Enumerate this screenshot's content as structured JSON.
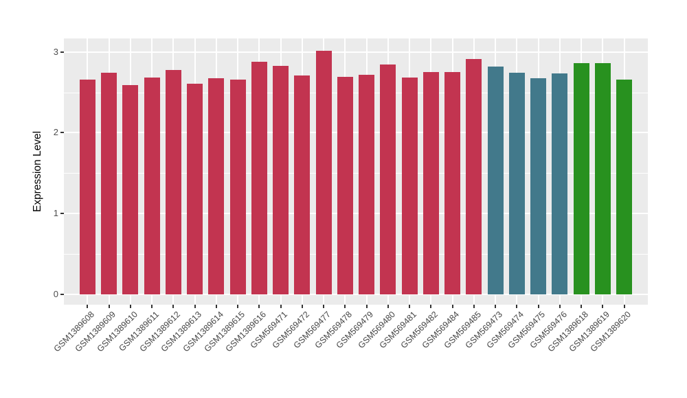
{
  "chart_data": {
    "type": "bar",
    "title": "",
    "xlabel": "",
    "ylabel": "Expression Level",
    "ylim": [
      0,
      3.17
    ],
    "yticks": [
      0,
      1,
      2,
      3
    ],
    "ytick_labels": [
      "0",
      "1",
      "2",
      "3"
    ],
    "minor_gridlines": [
      0.5,
      1.5,
      2.5
    ],
    "grid": "on",
    "legend": "none",
    "panel_bg": "#EBEBEB",
    "grid_color": "#FFFFFF",
    "axis_text_color": "#4D4D4D",
    "tick_mark_color": "#333333",
    "group_colors": {
      "red": "#C23450",
      "teal": "#42798B",
      "green": "#28911F"
    },
    "categories": [
      "GSM1389608",
      "GSM1389609",
      "GSM1389610",
      "GSM1389611",
      "GSM1389612",
      "GSM1389613",
      "GSM1389614",
      "GSM1389615",
      "GSM1389616",
      "GSM569471",
      "GSM569472",
      "GSM569477",
      "GSM569478",
      "GSM569479",
      "GSM569480",
      "GSM569481",
      "GSM569482",
      "GSM569484",
      "GSM569485",
      "GSM569473",
      "GSM569474",
      "GSM569475",
      "GSM569476",
      "GSM1389618",
      "GSM1389619",
      "GSM1389620"
    ],
    "values": [
      2.66,
      2.74,
      2.59,
      2.68,
      2.78,
      2.61,
      2.67,
      2.66,
      2.88,
      2.83,
      2.71,
      3.01,
      2.69,
      2.72,
      2.84,
      2.68,
      2.75,
      2.75,
      2.91,
      2.82,
      2.74,
      2.67,
      2.73,
      2.86,
      2.86,
      2.66
    ],
    "bar_groups": [
      "red",
      "red",
      "red",
      "red",
      "red",
      "red",
      "red",
      "red",
      "red",
      "red",
      "red",
      "red",
      "red",
      "red",
      "red",
      "red",
      "red",
      "red",
      "red",
      "teal",
      "teal",
      "teal",
      "teal",
      "green",
      "green",
      "green"
    ]
  }
}
